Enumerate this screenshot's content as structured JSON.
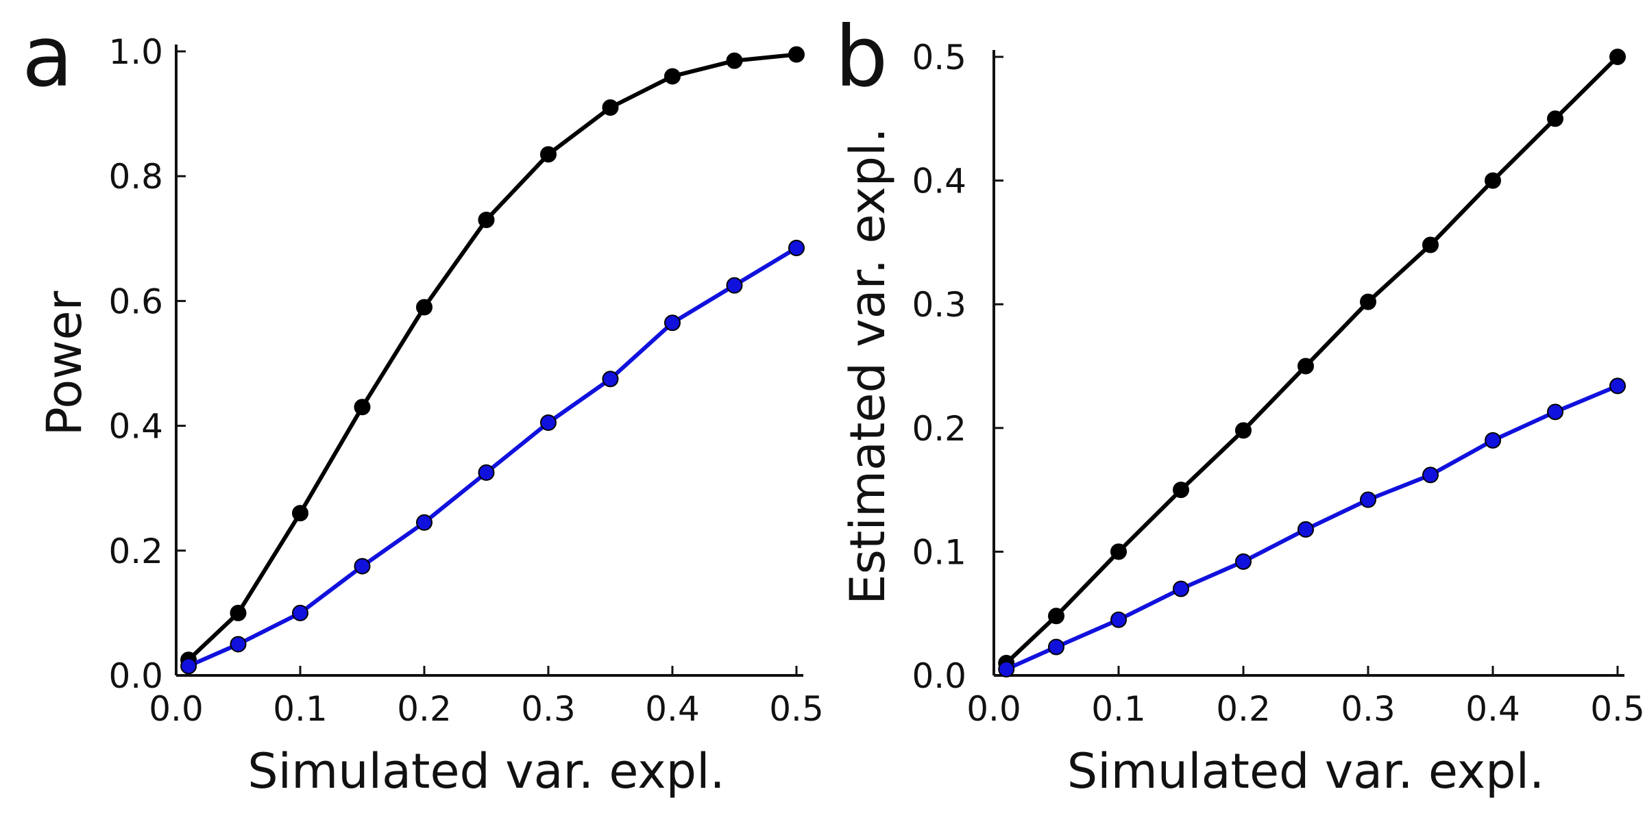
{
  "chart_data": [
    {
      "type": "line",
      "panel_label": "a",
      "xlabel": "Simulated var. expl.",
      "ylabel": "Power",
      "xlim": [
        0.0,
        0.5
      ],
      "ylim": [
        0.0,
        1.0
      ],
      "x_ticks": [
        0.0,
        0.1,
        0.2,
        0.3,
        0.4,
        0.5
      ],
      "x_tick_labels": [
        "0.0",
        "0.1",
        "0.2",
        "0.3",
        "0.4",
        "0.5"
      ],
      "y_ticks": [
        0.0,
        0.2,
        0.4,
        0.6,
        0.8,
        1.0
      ],
      "y_tick_labels": [
        "0.0",
        "0.2",
        "0.4",
        "0.6",
        "0.8",
        "1.0"
      ],
      "grid": false,
      "legend": "none",
      "x": [
        0.01,
        0.05,
        0.1,
        0.15,
        0.2,
        0.25,
        0.3,
        0.35,
        0.4,
        0.45,
        0.5
      ],
      "series": [
        {
          "name": "black",
          "color": "#000000",
          "values": [
            0.025,
            0.1,
            0.26,
            0.43,
            0.59,
            0.73,
            0.835,
            0.91,
            0.96,
            0.985,
            0.995
          ]
        },
        {
          "name": "blue",
          "color": "#1111dd",
          "values": [
            0.015,
            0.05,
            0.1,
            0.175,
            0.245,
            0.325,
            0.405,
            0.475,
            0.565,
            0.625,
            0.685
          ]
        }
      ]
    },
    {
      "type": "line",
      "panel_label": "b",
      "xlabel": "Simulated var. expl.",
      "ylabel": "Estimated var. expl.",
      "xlim": [
        0.0,
        0.5
      ],
      "ylim": [
        0.0,
        0.5
      ],
      "x_ticks": [
        0.0,
        0.1,
        0.2,
        0.3,
        0.4,
        0.5
      ],
      "x_tick_labels": [
        "0.0",
        "0.1",
        "0.2",
        "0.3",
        "0.4",
        "0.5"
      ],
      "y_ticks": [
        0.0,
        0.1,
        0.2,
        0.3,
        0.4,
        0.5
      ],
      "y_tick_labels": [
        "0.0",
        "0.1",
        "0.2",
        "0.3",
        "0.4",
        "0.5"
      ],
      "grid": false,
      "legend": "none",
      "x": [
        0.01,
        0.05,
        0.1,
        0.15,
        0.2,
        0.25,
        0.3,
        0.35,
        0.4,
        0.45,
        0.5
      ],
      "series": [
        {
          "name": "black",
          "color": "#000000",
          "values": [
            0.01,
            0.048,
            0.1,
            0.15,
            0.198,
            0.25,
            0.302,
            0.348,
            0.4,
            0.45,
            0.5
          ]
        },
        {
          "name": "blue",
          "color": "#1111dd",
          "values": [
            0.005,
            0.023,
            0.045,
            0.07,
            0.092,
            0.118,
            0.142,
            0.162,
            0.19,
            0.213,
            0.234
          ]
        }
      ]
    }
  ]
}
